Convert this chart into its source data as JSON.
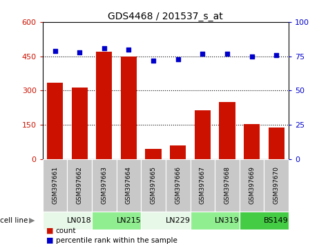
{
  "title": "GDS4468 / 201537_s_at",
  "samples": [
    "GSM397661",
    "GSM397662",
    "GSM397663",
    "GSM397664",
    "GSM397665",
    "GSM397666",
    "GSM397667",
    "GSM397668",
    "GSM397669",
    "GSM397670"
  ],
  "counts": [
    335,
    315,
    470,
    450,
    45,
    60,
    215,
    250,
    155,
    140
  ],
  "percentiles": [
    79,
    78,
    81,
    80,
    72,
    73,
    77,
    77,
    75,
    76
  ],
  "cell_lines": [
    {
      "label": "LN018",
      "start": 0,
      "end": 2,
      "color": "#e8f8e8"
    },
    {
      "label": "LN215",
      "start": 2,
      "end": 4,
      "color": "#90ee90"
    },
    {
      "label": "LN229",
      "start": 4,
      "end": 6,
      "color": "#e8f8e8"
    },
    {
      "label": "LN319",
      "start": 6,
      "end": 8,
      "color": "#90ee90"
    },
    {
      "label": "BS149",
      "start": 8,
      "end": 10,
      "color": "#44cc44"
    }
  ],
  "ylim_left": [
    0,
    600
  ],
  "ylim_right": [
    0,
    100
  ],
  "yticks_left": [
    0,
    150,
    300,
    450,
    600
  ],
  "yticks_right": [
    0,
    25,
    50,
    75,
    100
  ],
  "bar_color": "#cc1100",
  "dot_color": "#0000cc",
  "sample_bg_color": "#c8c8c8",
  "legend_count_color": "#cc1100",
  "legend_pct_color": "#0000cc",
  "fig_width": 4.75,
  "fig_height": 3.54,
  "dpi": 100
}
